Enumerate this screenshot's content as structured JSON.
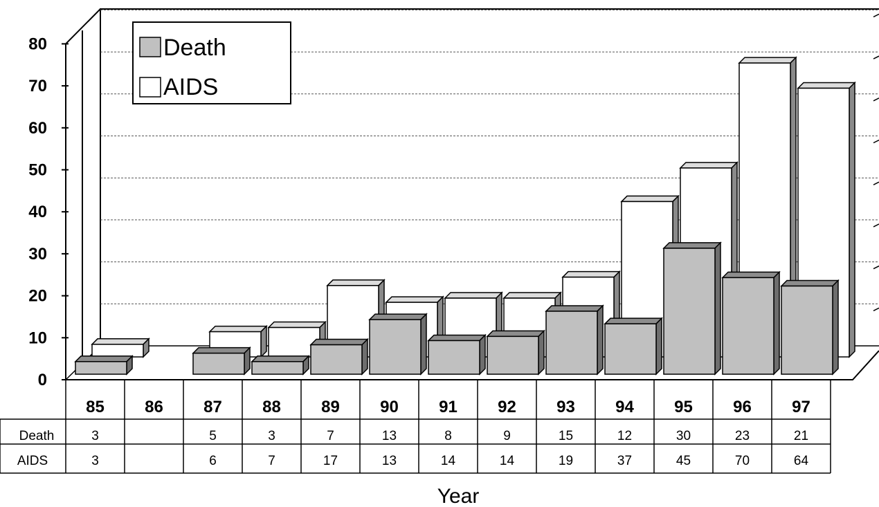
{
  "chart_data": {
    "type": "bar",
    "three_d": true,
    "categories": [
      "85",
      "86",
      "87",
      "88",
      "89",
      "90",
      "91",
      "92",
      "93",
      "94",
      "95",
      "96",
      "97"
    ],
    "series": [
      {
        "name": "Death",
        "color": "#c0c0c0",
        "values": [
          3,
          null,
          5,
          3,
          7,
          13,
          8,
          9,
          15,
          12,
          30,
          23,
          21
        ]
      },
      {
        "name": "AIDS",
        "color": "#ffffff",
        "values": [
          3,
          null,
          6,
          7,
          17,
          13,
          14,
          14,
          19,
          37,
          45,
          70,
          64
        ]
      }
    ],
    "ylim": [
      0,
      80
    ],
    "yticks": [
      "0",
      "10",
      "20",
      "30",
      "40",
      "50",
      "60",
      "70",
      "80"
    ],
    "xlabel": "Year",
    "ylabel": "",
    "legend": "top-left",
    "grid": true,
    "data_table": true
  }
}
